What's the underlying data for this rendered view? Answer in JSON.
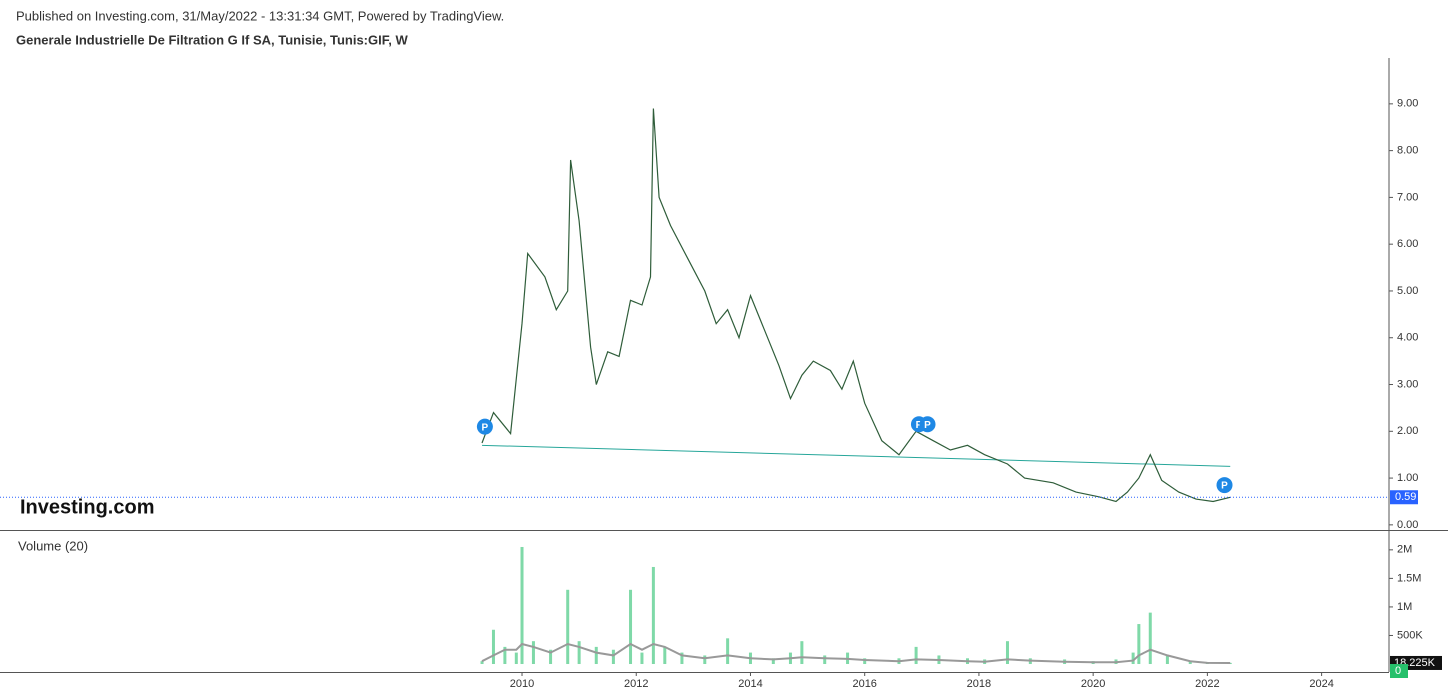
{
  "header": {
    "published": "Published on Investing.com, 31/May/2022 - 13:31:34 GMT, Powered by TradingView.",
    "title": "Generale Industrielle De Filtration G If SA, Tunisie, Tunis:GIF, W",
    "logo": "Investing.com"
  },
  "chart_data": [
    {
      "type": "line",
      "color": "#2f5d3a",
      "x": [
        2009.3,
        2009.5,
        2009.8,
        2010.0,
        2010.1,
        2010.4,
        2010.6,
        2010.8,
        2010.85,
        2011.0,
        2011.2,
        2011.3,
        2011.5,
        2011.7,
        2011.9,
        2012.1,
        2012.25,
        2012.3,
        2012.4,
        2012.6,
        2012.9,
        2013.2,
        2013.4,
        2013.6,
        2013.8,
        2014.0,
        2014.3,
        2014.5,
        2014.7,
        2014.9,
        2015.1,
        2015.4,
        2015.6,
        2015.8,
        2016.0,
        2016.3,
        2016.6,
        2016.9,
        2017.2,
        2017.5,
        2017.8,
        2018.1,
        2018.5,
        2018.8,
        2019.3,
        2019.7,
        2020.1,
        2020.4,
        2020.6,
        2020.8,
        2021.0,
        2021.2,
        2021.5,
        2021.8,
        2022.1,
        2022.4
      ],
      "values": [
        1.75,
        2.4,
        1.95,
        4.3,
        5.8,
        5.3,
        4.6,
        5.0,
        7.8,
        6.5,
        3.8,
        3.0,
        3.7,
        3.6,
        4.8,
        4.7,
        5.3,
        8.9,
        7.0,
        6.4,
        5.7,
        5.0,
        4.3,
        4.6,
        4.0,
        4.9,
        4.0,
        3.4,
        2.7,
        3.2,
        3.5,
        3.3,
        2.9,
        3.5,
        2.6,
        1.8,
        1.5,
        2.0,
        1.8,
        1.6,
        1.7,
        1.5,
        1.3,
        1.0,
        0.9,
        0.7,
        0.6,
        0.5,
        0.7,
        1.0,
        1.5,
        0.95,
        0.7,
        0.55,
        0.5,
        0.59
      ],
      "xlim": [
        2000.86,
        2025.18
      ],
      "xticks": [
        2010,
        2012,
        2014,
        2016,
        2018,
        2020,
        2022,
        2024
      ],
      "ylim": [
        -0.11,
        9.98
      ],
      "yticks": [
        {
          "value": 0,
          "label": "0.00"
        },
        {
          "value": 1,
          "label": "1.00"
        },
        {
          "value": 2,
          "label": "2.00"
        },
        {
          "value": 3,
          "label": "3.00"
        },
        {
          "value": 4,
          "label": "4.00"
        },
        {
          "value": 5,
          "label": "5.00"
        },
        {
          "value": 6,
          "label": "6.00"
        },
        {
          "value": 7,
          "label": "7.00"
        },
        {
          "value": 8,
          "label": "8.00"
        },
        {
          "value": 9,
          "label": "9.00"
        }
      ],
      "last": {
        "value": 0.59,
        "label": "0.59"
      },
      "trendline": {
        "x": [
          2009.3,
          2022.4
        ],
        "y": [
          1.7,
          1.25
        ]
      },
      "markers": [
        {
          "x": 2009.35,
          "y": 2.1,
          "label": "P"
        },
        {
          "x": 2016.95,
          "y": 2.15,
          "label": "P"
        },
        {
          "x": 2017.1,
          "y": 2.15,
          "label": "P"
        },
        {
          "x": 2022.3,
          "y": 0.85,
          "label": "P"
        }
      ]
    },
    {
      "type": "bar",
      "label": "Volume (20)",
      "color": "#7fd9a8",
      "ma_color": "#999999",
      "x": [
        2009.3,
        2009.5,
        2009.7,
        2009.9,
        2010.0,
        2010.2,
        2010.5,
        2010.8,
        2011.0,
        2011.3,
        2011.6,
        2011.9,
        2012.1,
        2012.3,
        2012.5,
        2012.8,
        2013.2,
        2013.6,
        2014.0,
        2014.4,
        2014.7,
        2014.9,
        2015.3,
        2015.7,
        2016.0,
        2016.6,
        2016.9,
        2017.3,
        2017.8,
        2018.1,
        2018.5,
        2018.9,
        2019.5,
        2020.0,
        2020.4,
        2020.7,
        2020.8,
        2021.0,
        2021.3,
        2021.7,
        2022.0,
        2022.4
      ],
      "values": [
        50000,
        600000,
        300000,
        200000,
        2050000,
        400000,
        250000,
        1300000,
        400000,
        300000,
        250000,
        1300000,
        200000,
        1700000,
        300000,
        200000,
        150000,
        450000,
        200000,
        100000,
        200000,
        400000,
        150000,
        200000,
        100000,
        100000,
        300000,
        150000,
        100000,
        80000,
        400000,
        100000,
        80000,
        50000,
        80000,
        200000,
        700000,
        900000,
        150000,
        50000,
        30000,
        20000
      ],
      "ma_values": [
        50000,
        150000,
        250000,
        250000,
        350000,
        300000,
        200000,
        350000,
        300000,
        200000,
        150000,
        350000,
        250000,
        350000,
        300000,
        150000,
        100000,
        150000,
        100000,
        80000,
        100000,
        120000,
        100000,
        90000,
        70000,
        50000,
        80000,
        70000,
        50000,
        40000,
        80000,
        60000,
        40000,
        30000,
        30000,
        60000,
        150000,
        250000,
        150000,
        50000,
        20000,
        18225
      ],
      "xlim": [
        2000.86,
        2025.18
      ],
      "ylim": [
        -140000,
        2330000
      ],
      "yticks": [
        {
          "value": 500000,
          "label": "500K"
        },
        {
          "value": 1000000,
          "label": "1M"
        },
        {
          "value": 1500000,
          "label": "1.5M"
        },
        {
          "value": 2000000,
          "label": "2M"
        }
      ],
      "ma_last": {
        "value": 18225,
        "label": "18.225K"
      },
      "last": 0
    }
  ]
}
